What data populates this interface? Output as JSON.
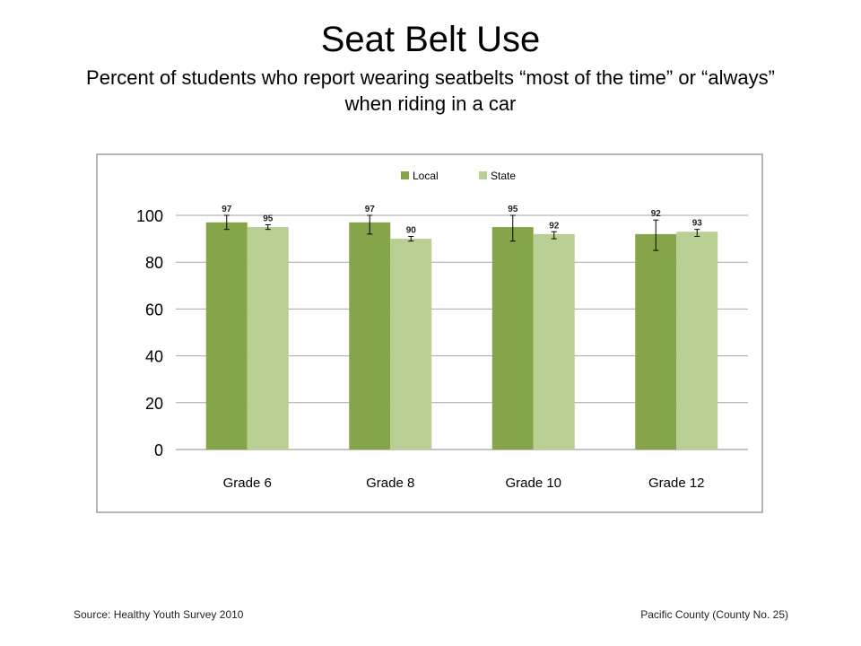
{
  "title": "Seat Belt Use",
  "subtitle": "Percent of students who report wearing seatbelts “most of the time” or “always” when riding in a car",
  "chart_data": {
    "type": "bar",
    "categories": [
      "Grade 6",
      "Grade 8",
      "Grade 10",
      "Grade 12"
    ],
    "series": [
      {
        "name": "Local",
        "values": [
          97,
          97,
          95,
          92
        ],
        "color": "#86a54a",
        "err_low": [
          94,
          92,
          89,
          85
        ],
        "err_high": [
          100,
          100,
          100,
          98
        ]
      },
      {
        "name": "State",
        "values": [
          95,
          90,
          92,
          93
        ],
        "color": "#b9cf94",
        "err_low": [
          94,
          89,
          90,
          91
        ],
        "err_high": [
          96,
          91,
          93,
          94
        ]
      }
    ],
    "y_ticks": [
      "0",
      "20",
      "40",
      "60",
      "80",
      "100"
    ],
    "ylim": [
      0,
      100
    ],
    "grid": true,
    "legend_position": "top-center"
  },
  "footer": {
    "source": "Source: Healthy Youth Survey 2010",
    "county": "Pacific County (County No. 25)"
  }
}
